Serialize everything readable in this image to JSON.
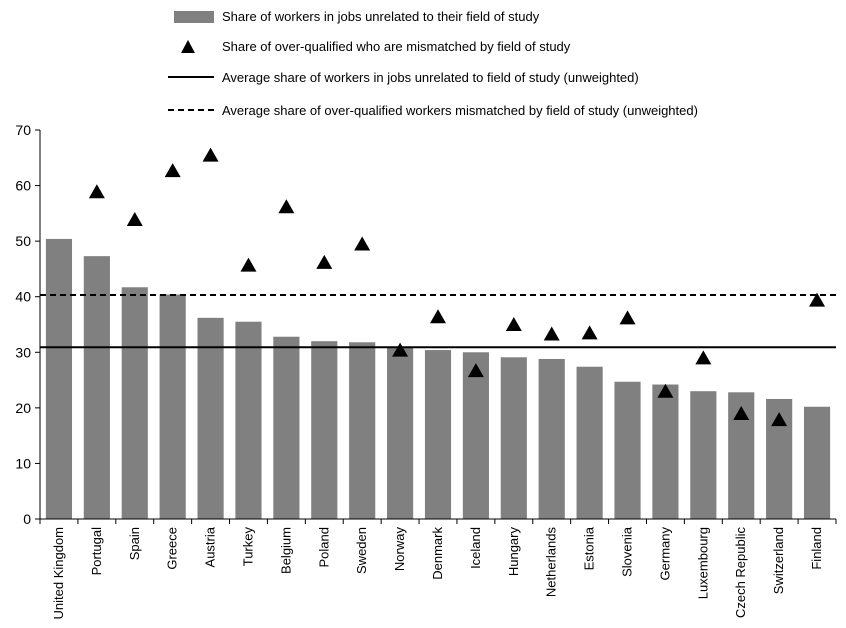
{
  "chart_data": {
    "type": "bar",
    "categories": [
      "United Kingdom",
      "Portugal",
      "Spain",
      "Greece",
      "Austria",
      "Turkey",
      "Belgium",
      "Poland",
      "Sweden",
      "Norway",
      "Denmark",
      "Iceland",
      "Hungary",
      "Netherlands",
      "Estonia",
      "Slovenia",
      "Germany",
      "Luxembourg",
      "Czech Republic",
      "Switzerland",
      "Finland"
    ],
    "series": [
      {
        "name": "Share of workers in jobs unrelated to their field of study",
        "kind": "bar",
        "color": "#808080",
        "values": [
          50.4,
          47.3,
          41.7,
          40.4,
          36.2,
          35.5,
          32.8,
          32.0,
          31.8,
          30.8,
          30.4,
          30.0,
          29.1,
          28.8,
          27.4,
          24.7,
          24.2,
          23.0,
          22.8,
          21.6,
          20.2
        ]
      },
      {
        "name": "Share of over-qualified who are mismatched by field of study",
        "kind": "triangle",
        "color": "#000000",
        "values": [
          null,
          58.8,
          53.8,
          62.6,
          65.4,
          45.6,
          56.1,
          46.1,
          49.4,
          30.3,
          36.3,
          26.6,
          34.9,
          33.2,
          33.4,
          36.1,
          22.9,
          28.9,
          18.9,
          17.8,
          39.3
        ]
      }
    ],
    "reference_lines": [
      {
        "name": "Average share of workers in jobs unrelated to field of study (unweighted)",
        "value": 30.9,
        "style": "solid"
      },
      {
        "name": "Average share of over-qualified workers mismatched by field of study (unweighted)",
        "value": 40.3,
        "style": "dashed"
      }
    ],
    "ylim": [
      0,
      70
    ],
    "yticks": [
      0,
      10,
      20,
      30,
      40,
      50,
      60,
      70
    ],
    "legend_position": "top",
    "grid": false
  }
}
